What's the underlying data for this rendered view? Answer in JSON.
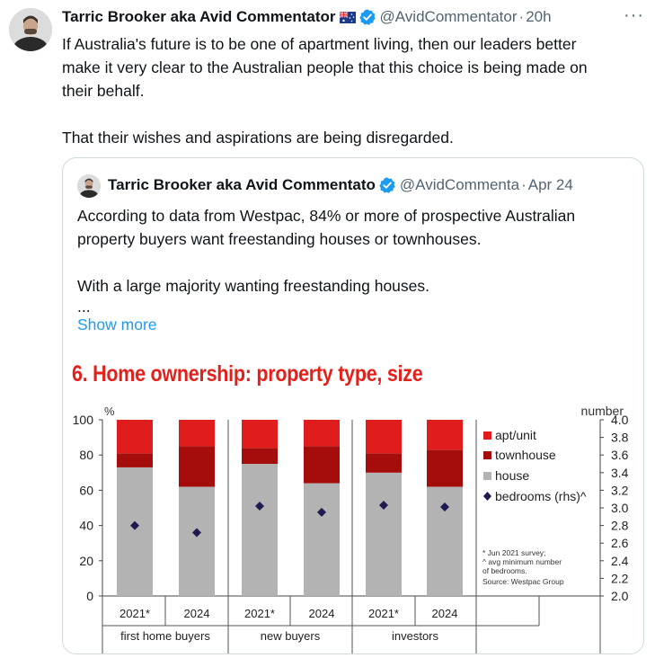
{
  "tweet": {
    "author_name": "Tarric Brooker aka Avid Commentator",
    "handle": "@AvidCommentator",
    "time": "20h",
    "more_label": "···",
    "text_lines": [
      "If Australia's future is to be one of apartment living, then our leaders better",
      "make it very clear to the Australian people that this choice is being made on",
      "their behalf."
    ],
    "text_line_2": "That their wishes and aspirations are being disregarded."
  },
  "quote": {
    "author_name": "Tarric Brooker aka Avid Commentato",
    "handle": "@AvidCommenta",
    "time": "Apr 24",
    "text_lines": [
      "According to data from Westpac, 84% or more of prospective Australian",
      "property buyers want freestanding houses or townhouses."
    ],
    "text_line_2": "With a large majority wanting freestanding houses.",
    "ellipsis": "...",
    "show_more": "Show more"
  },
  "colors": {
    "apt": "#e11c1c",
    "townhouse": "#a50d0d",
    "house": "#b3b3b3",
    "bedrooms": "#1f1a4f",
    "title": "#e4201b",
    "link": "#1d9bf0",
    "secondary": "#536471"
  },
  "chart_data": {
    "type": "bar",
    "title": "6. Home ownership: property type, size",
    "left_axis_unit": "%",
    "right_axis_unit": "number",
    "ylim": [
      0,
      100
    ],
    "y2lim": [
      2.0,
      4.0
    ],
    "yticks": [
      "0",
      "20",
      "40",
      "60",
      "80",
      "100"
    ],
    "y2ticks": [
      "2.0",
      "2.2",
      "2.4",
      "2.6",
      "2.8",
      "3.0",
      "3.2",
      "3.4",
      "3.6",
      "3.8",
      "4.0"
    ],
    "categories": [
      "2021*",
      "2024",
      "2021*",
      "2024",
      "2021*",
      "2024"
    ],
    "groups": [
      "first home buyers",
      "new buyers",
      "investors"
    ],
    "series": [
      {
        "name": "house",
        "values": [
          73,
          62,
          75,
          64,
          70,
          62
        ]
      },
      {
        "name": "townhouse",
        "values": [
          8,
          23,
          9,
          21,
          11,
          21
        ]
      },
      {
        "name": "apt/unit",
        "values": [
          19,
          15,
          16,
          15,
          19,
          17
        ]
      }
    ],
    "bedrooms": {
      "name": "bedrooms (rhs)^",
      "values": [
        2.8,
        2.72,
        3.02,
        2.95,
        3.03,
        3.01
      ]
    },
    "legend": [
      "apt/unit",
      "townhouse",
      "house",
      "bedrooms (rhs)^"
    ],
    "legend_markers": [
      "■",
      "■",
      "■",
      "◆"
    ],
    "footnotes": [
      "* Jun 2021 survey;",
      "^ avg minimum number",
      "of bedrooms.",
      "Source: Westpac Group"
    ]
  }
}
